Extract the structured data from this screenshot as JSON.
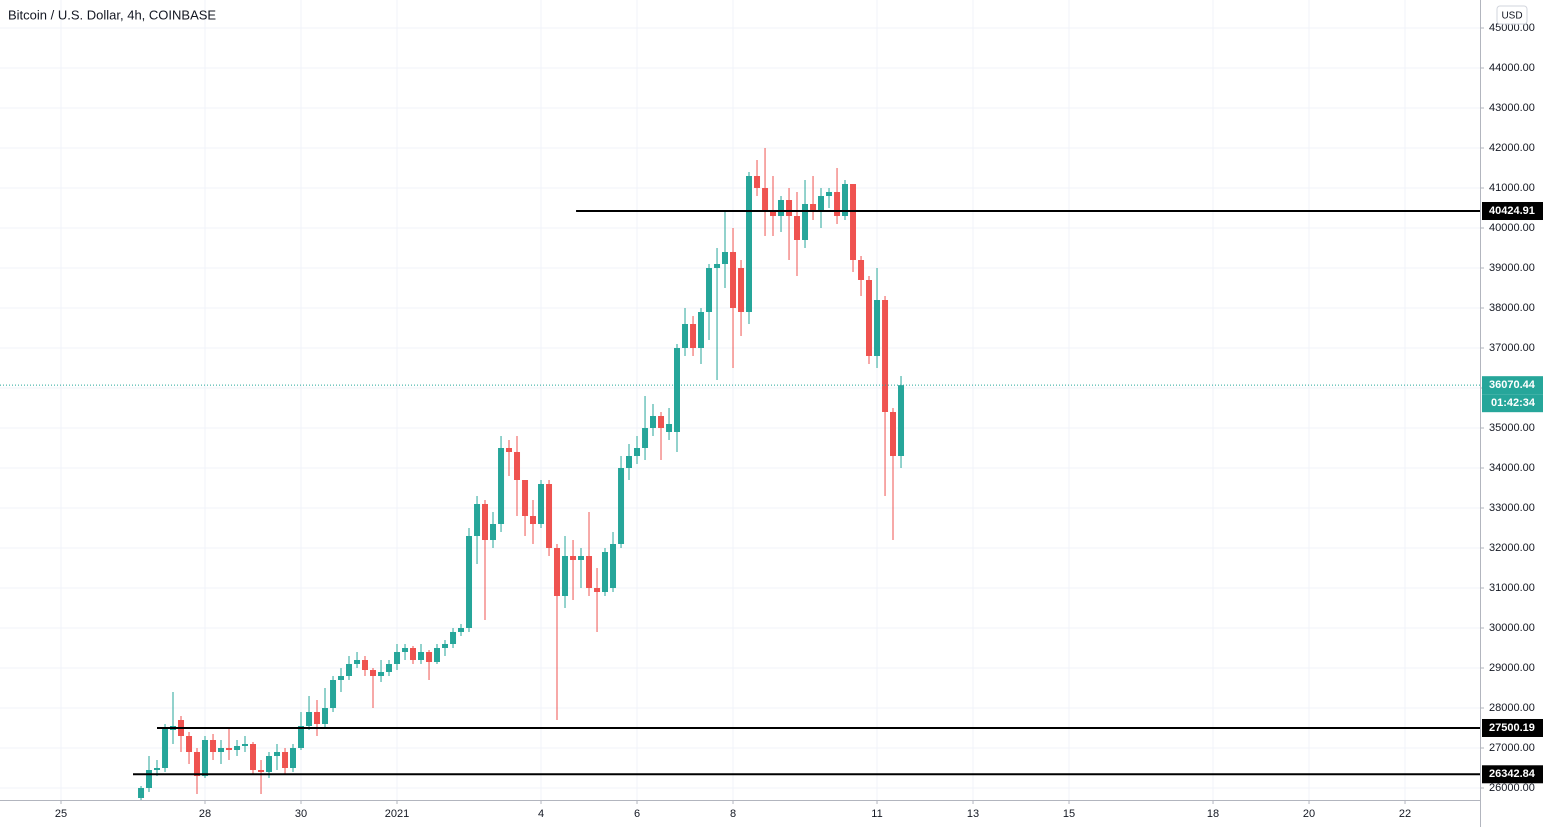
{
  "chart_data": {
    "type": "candlestick",
    "title": "Bitcoin / U.S. Dollar, 4h, COINBASE",
    "currency": "USD",
    "up_color": "#26a69a",
    "down_color": "#ef5350",
    "grid": true,
    "xlim": [
      23.729,
      54.562
    ],
    "xticks": [
      {
        "value": 25,
        "label": "25"
      },
      {
        "value": 28,
        "label": "28"
      },
      {
        "value": 30,
        "label": "30"
      },
      {
        "value": 32,
        "label": "2021"
      },
      {
        "value": 35,
        "label": "4"
      },
      {
        "value": 37,
        "label": "6"
      },
      {
        "value": 39,
        "label": "8"
      },
      {
        "value": 42,
        "label": "11"
      },
      {
        "value": 44,
        "label": "13"
      },
      {
        "value": 46,
        "label": "15"
      },
      {
        "value": 49,
        "label": "18"
      },
      {
        "value": 51,
        "label": "20"
      },
      {
        "value": 53,
        "label": "22"
      }
    ],
    "ylim": [
      25700,
      45700
    ],
    "yticks": [
      {
        "value": 26000,
        "label": "26000.00"
      },
      {
        "value": 27000,
        "label": "27000.00"
      },
      {
        "value": 28000,
        "label": "28000.00"
      },
      {
        "value": 29000,
        "label": "29000.00"
      },
      {
        "value": 30000,
        "label": "30000.00"
      },
      {
        "value": 31000,
        "label": "31000.00"
      },
      {
        "value": 32000,
        "label": "32000.00"
      },
      {
        "value": 33000,
        "label": "33000.00"
      },
      {
        "value": 34000,
        "label": "34000.00"
      },
      {
        "value": 35000,
        "label": "35000.00"
      },
      {
        "value": 36000,
        "label": "36000.00"
      },
      {
        "value": 37000,
        "label": "37000.00"
      },
      {
        "value": 38000,
        "label": "38000.00"
      },
      {
        "value": 39000,
        "label": "39000.00"
      },
      {
        "value": 40000,
        "label": "40000.00"
      },
      {
        "value": 41000,
        "label": "41000.00"
      },
      {
        "value": 42000,
        "label": "42000.00"
      },
      {
        "value": 43000,
        "label": "43000.00"
      },
      {
        "value": 44000,
        "label": "44000.00"
      },
      {
        "value": 45000,
        "label": "45000.00"
      }
    ],
    "x": [
      26.667,
      26.833,
      27,
      27.167,
      27.333,
      27.5,
      27.667,
      27.833,
      28,
      28.167,
      28.333,
      28.5,
      28.667,
      28.833,
      29,
      29.167,
      29.333,
      29.5,
      29.667,
      29.833,
      30,
      30.167,
      30.333,
      30.5,
      30.667,
      30.833,
      31,
      31.167,
      31.333,
      31.5,
      31.667,
      31.833,
      32,
      32.167,
      32.333,
      32.5,
      32.667,
      32.833,
      33,
      33.167,
      33.333,
      33.5,
      33.667,
      33.833,
      34,
      34.167,
      34.333,
      34.5,
      34.667,
      34.833,
      35,
      35.167,
      35.333,
      35.5,
      35.667,
      35.833,
      36,
      36.167,
      36.333,
      36.5,
      36.667,
      36.833,
      37,
      37.167,
      37.333,
      37.5,
      37.667,
      37.833,
      38,
      38.167,
      38.333,
      38.5,
      38.667,
      38.833,
      39,
      39.167,
      39.333,
      39.5,
      39.667,
      39.833,
      40,
      40.167,
      40.333,
      40.5,
      40.667,
      40.833,
      41,
      41.167,
      41.333,
      41.5,
      41.667,
      41.833,
      42,
      42.167,
      42.333,
      42.5
    ],
    "open": [
      25750,
      26000,
      26450,
      26500,
      27450,
      27700,
      27300,
      26900,
      26300,
      27200,
      26900,
      27000,
      26950,
      27050,
      27100,
      26450,
      26400,
      26800,
      26900,
      26500,
      27000,
      27550,
      27900,
      27600,
      28000,
      28700,
      28800,
      29100,
      29200,
      28950,
      28800,
      28900,
      29100,
      29400,
      29500,
      29200,
      29400,
      29150,
      29500,
      29600,
      29900,
      30000,
      32300,
      33100,
      32200,
      32600,
      34500,
      34400,
      33700,
      32800,
      32600,
      33600,
      32000,
      30800,
      31800,
      31700,
      31800,
      31000,
      30900,
      31000,
      32100,
      34000,
      34300,
      34500,
      35000,
      35300,
      34900,
      34900,
      37000,
      37600,
      37000,
      37900,
      39000,
      39100,
      39400,
      39000,
      37900,
      41300,
      41000,
      40400,
      40300,
      40700,
      40300,
      39700,
      40600,
      40400,
      40800,
      40900,
      40300,
      41100,
      39200,
      38700,
      36800,
      38200,
      35400,
      34300
    ],
    "high": [
      26050,
      26800,
      26700,
      27600,
      28400,
      27800,
      27400,
      27000,
      27300,
      27350,
      27200,
      27500,
      27200,
      27300,
      27150,
      26700,
      26900,
      27100,
      27000,
      27100,
      27900,
      28300,
      28200,
      28500,
      28800,
      29000,
      29300,
      29400,
      29300,
      29000,
      29200,
      29200,
      29600,
      29600,
      29550,
      29600,
      29450,
      29600,
      29700,
      30000,
      30100,
      32500,
      33300,
      33200,
      32900,
      34800,
      34700,
      34800,
      33700,
      33200,
      33700,
      33700,
      32100,
      32300,
      32200,
      32000,
      32900,
      31500,
      32000,
      32400,
      34300,
      34600,
      34800,
      35800,
      35600,
      35400,
      35500,
      37100,
      38000,
      37800,
      38000,
      39100,
      39500,
      40400,
      40000,
      39200,
      41400,
      41700,
      42000,
      41300,
      40800,
      41000,
      40900,
      41200,
      41300,
      41000,
      41000,
      41500,
      41200,
      41100,
      39300,
      38800,
      39000,
      38300,
      35500,
      36300
    ],
    "low": [
      25700,
      25900,
      26300,
      26400,
      27100,
      26900,
      26600,
      25850,
      26250,
      26700,
      26600,
      26700,
      26800,
      26900,
      26350,
      25850,
      26250,
      26450,
      26350,
      26400,
      26950,
      27450,
      27300,
      27500,
      27900,
      28400,
      28700,
      29000,
      28800,
      28000,
      28650,
      28800,
      28950,
      29200,
      29100,
      29100,
      28700,
      29100,
      29300,
      29500,
      29800,
      29900,
      31600,
      30200,
      32000,
      32400,
      33800,
      32800,
      32300,
      32100,
      32500,
      31800,
      27700,
      30500,
      30700,
      31000,
      30800,
      29900,
      30800,
      30900,
      32000,
      33700,
      34100,
      34200,
      34800,
      34200,
      34700,
      34400,
      36800,
      36800,
      36600,
      37200,
      36200,
      38500,
      36500,
      37300,
      37600,
      40800,
      39800,
      39800,
      39900,
      39200,
      38800,
      39500,
      40200,
      40000,
      40500,
      40100,
      40200,
      38900,
      38300,
      36600,
      36500,
      33300,
      32200,
      34000
    ],
    "close": [
      26000,
      26450,
      26500,
      27500,
      27550,
      27300,
      26900,
      26300,
      27200,
      26900,
      27000,
      26950,
      27050,
      27100,
      26450,
      26400,
      26800,
      26900,
      26500,
      27000,
      27550,
      27900,
      27600,
      28000,
      28700,
      28800,
      29100,
      29200,
      28950,
      28800,
      28900,
      29100,
      29400,
      29500,
      29200,
      29400,
      29150,
      29500,
      29600,
      29900,
      30000,
      32300,
      33100,
      32200,
      32600,
      34500,
      34400,
      33700,
      32800,
      32600,
      33600,
      32000,
      30800,
      31800,
      31700,
      31800,
      31000,
      30900,
      31900,
      32100,
      34000,
      34300,
      34500,
      35000,
      35300,
      35000,
      35100,
      37000,
      37600,
      37000,
      37900,
      39000,
      39100,
      39400,
      38000,
      37900,
      41300,
      41000,
      40400,
      40300,
      40700,
      40300,
      39700,
      40600,
      40400,
      40800,
      40900,
      40300,
      41100,
      39200,
      38700,
      36800,
      38200,
      35400,
      34300,
      36070.44
    ],
    "levels": [
      {
        "price": 40424.91,
        "x_start": 35.73
      },
      {
        "price": 27500.19,
        "x_start": 27.0
      },
      {
        "price": 26342.84,
        "x_start": 26.5
      }
    ],
    "last_price": 36070.44,
    "countdown": "01:42:34"
  }
}
